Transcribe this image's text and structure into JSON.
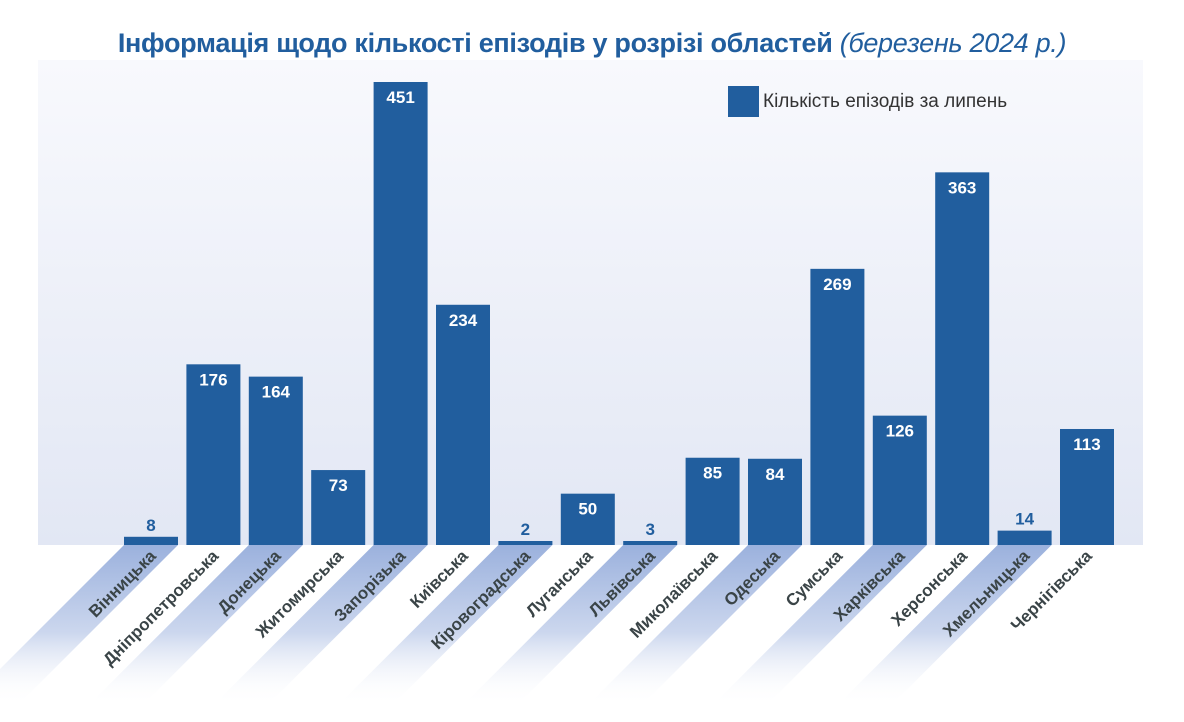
{
  "chart_data": {
    "type": "bar",
    "title": "Інформація щодо кількості епізодів у розрізі областей",
    "subtitle": "(березень 2024 р.)",
    "xlabel": "",
    "ylabel": "",
    "ylim": [
      0,
      451
    ],
    "grid": false,
    "legend_position": "top-right",
    "legend": [
      "Кількість епізодів за липень"
    ],
    "bar_color": "#215e9e",
    "categories": [
      "Вінницька",
      "Дніпропетровська",
      "Донецька",
      "Житомирська",
      "Запорізька",
      "Київська",
      "Кіровоградська",
      "Луганська",
      "Львівська",
      "Миколаївська",
      "Одеська",
      "Сумська",
      "Харківська",
      "Херсонська",
      "Хмельницька",
      "Чернігівська"
    ],
    "series": [
      {
        "name": "Кількість епізодів за липень",
        "values": [
          8,
          176,
          164,
          73,
          451,
          234,
          2,
          50,
          3,
          85,
          84,
          269,
          126,
          363,
          14,
          113
        ]
      }
    ]
  }
}
